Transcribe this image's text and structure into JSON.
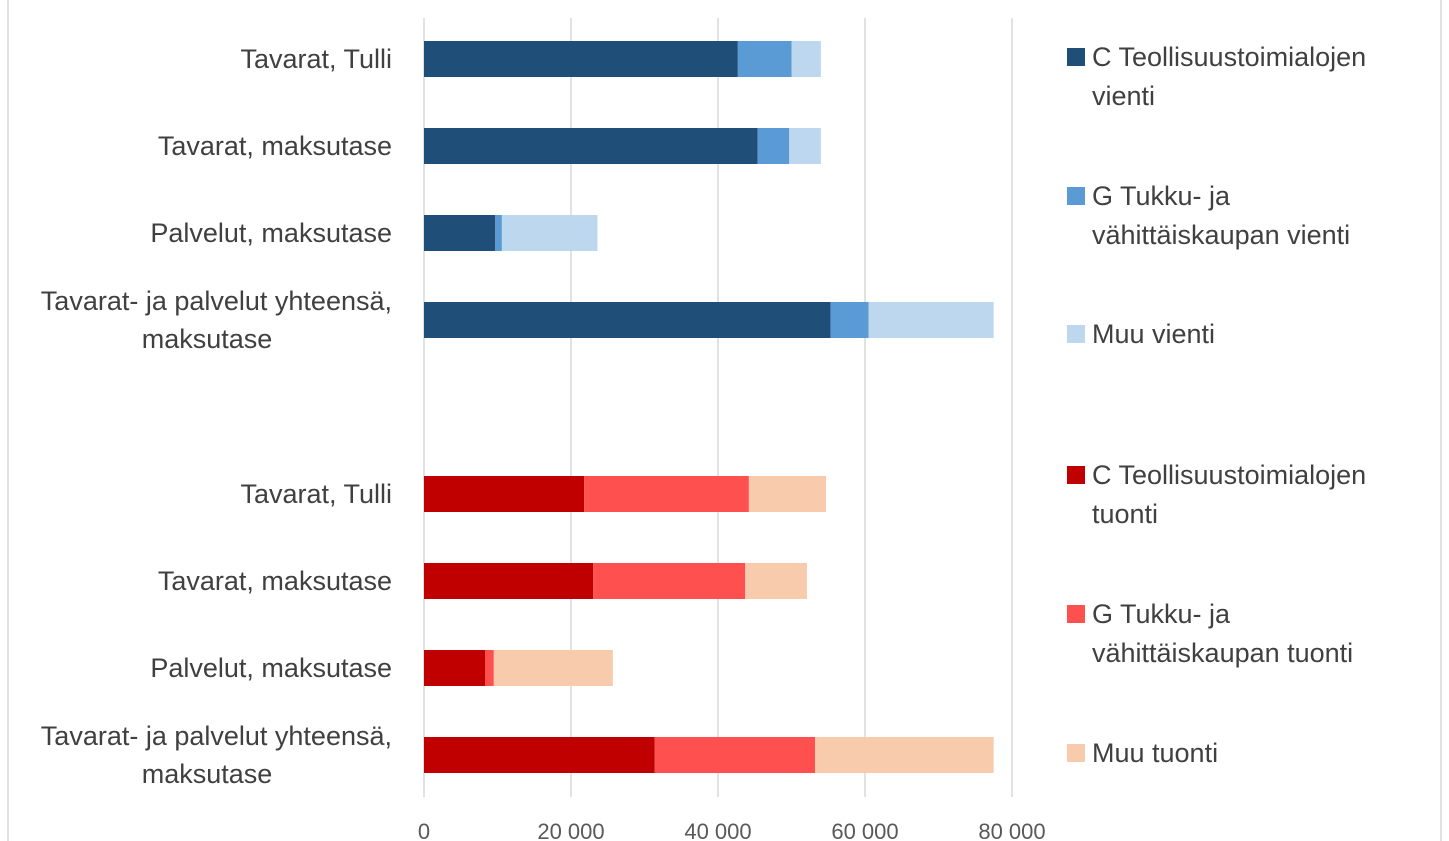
{
  "chart_data": {
    "type": "bar",
    "orientation": "horizontal",
    "stacked": true,
    "title": "",
    "xlabel": "",
    "ylabel": "",
    "xlim": [
      0,
      80000
    ],
    "x_ticks": [
      0,
      20000,
      40000,
      60000,
      80000
    ],
    "x_tick_labels": [
      "0",
      "20 000",
      "40 000",
      "60 000",
      "80 000"
    ],
    "grid": true,
    "legend_position": "right",
    "groups": [
      {
        "categories": [
          "Tavarat, Tulli",
          "Tavarat, maksutase",
          "Palvelut, maksutase",
          "Tavarat- ja palvelut yhteensä, maksutase"
        ],
        "series": [
          {
            "name": "C Teollisuustoimialojen vienti",
            "color": "#1f4e79",
            "values": [
              42700,
              45400,
              9700,
              55300
            ]
          },
          {
            "name": "G Tukku- ja vähittäiskaupan vienti",
            "color": "#5b9bd5",
            "values": [
              7300,
              4300,
              900,
              5200
            ]
          },
          {
            "name": "Muu vienti",
            "color": "#bdd7ee",
            "values": [
              4000,
              4300,
              13000,
              17000
            ]
          }
        ]
      },
      {
        "categories": [
          "Tavarat, Tulli",
          "Tavarat, maksutase",
          "Palvelut, maksutase",
          "Tavarat- ja palvelut yhteensä, maksutase"
        ],
        "series": [
          {
            "name": "C Teollisuustoimialojen tuonti",
            "color": "#c00000",
            "values": [
              21800,
              23000,
              8300,
              31400
            ]
          },
          {
            "name": "G Tukku- ja vähittäiskaupan tuonti",
            "color": "#ff5050",
            "values": [
              22400,
              20700,
              1200,
              21800
            ]
          },
          {
            "name": "Muu tuonti",
            "color": "#f8cbad",
            "values": [
              10500,
              8400,
              16200,
              24300
            ]
          }
        ]
      }
    ]
  }
}
